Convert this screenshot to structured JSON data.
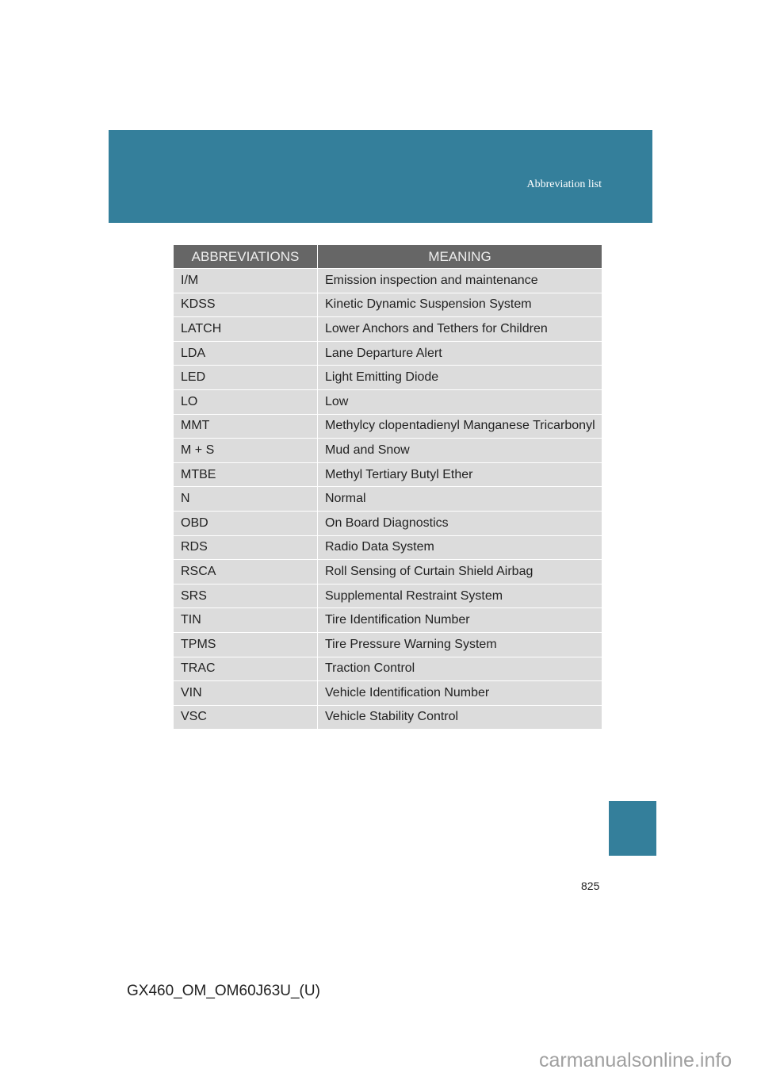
{
  "header": {
    "title": "Abbreviation list"
  },
  "table": {
    "columns": [
      "ABBREVIATIONS",
      "MEANING"
    ],
    "rows": [
      [
        "I/M",
        "Emission inspection and maintenance"
      ],
      [
        "KDSS",
        "Kinetic Dynamic Suspension System"
      ],
      [
        "LATCH",
        "Lower Anchors and Tethers for Children"
      ],
      [
        "LDA",
        "Lane Departure Alert"
      ],
      [
        "LED",
        "Light Emitting Diode"
      ],
      [
        "LO",
        "Low"
      ],
      [
        "MMT",
        "Methylcy clopentadienyl Manganese Tricarbonyl"
      ],
      [
        "M + S",
        "Mud and Snow"
      ],
      [
        "MTBE",
        "Methyl Tertiary Butyl Ether"
      ],
      [
        "N",
        "Normal"
      ],
      [
        "OBD",
        "On Board Diagnostics"
      ],
      [
        "RDS",
        "Radio Data System"
      ],
      [
        "RSCA",
        "Roll Sensing of Curtain Shield Airbag"
      ],
      [
        "SRS",
        "Supplemental Restraint System"
      ],
      [
        "TIN",
        "Tire Identification Number"
      ],
      [
        "TPMS",
        "Tire Pressure Warning System"
      ],
      [
        "TRAC",
        "Traction Control"
      ],
      [
        "VIN",
        "Vehicle Identification Number"
      ],
      [
        "VSC",
        "Vehicle Stability Control"
      ]
    ]
  },
  "page_number": "825",
  "footer": "GX460_OM_OM60J63U_(U)",
  "watermark": "carmanualsonline.info",
  "colors": {
    "accent": "#347f9b",
    "header_bg": "#666666",
    "row_bg": "#dcdcdc"
  }
}
